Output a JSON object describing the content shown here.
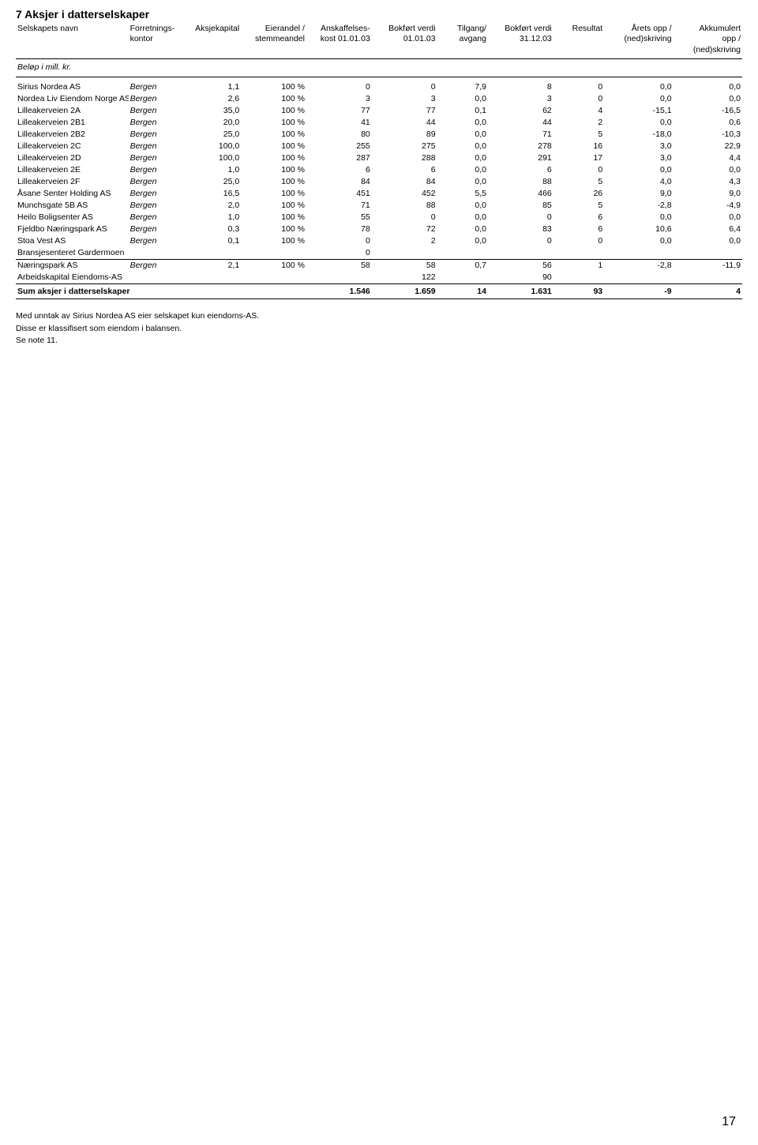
{
  "title": "7  Aksjer i datterselskaper",
  "pageNumber": "17",
  "headers": {
    "name": "Selskapets navn",
    "kontor1": "Forretnings-",
    "kontor2": "kontor",
    "kap": "Aksjekapital",
    "eier1": "Eierandel /",
    "eier2": "stemmeandel",
    "kost1": "Anskaffelses-",
    "kost2": "kost 01.01.03",
    "bv1a": "Bokført verdi",
    "bv1b": "01.01.03",
    "tilg1": "Tilgang/",
    "tilg2": "avgang",
    "bv2a": "Bokført verdi",
    "bv2b": "31.12.03",
    "res": "Resultat",
    "opp1": "Årets opp /",
    "opp2": "(ned)skriving",
    "akk1": "Akkumulert",
    "akk2": "opp /",
    "akk3": "(ned)skriving"
  },
  "subhead": "Beløp i mill. kr.",
  "rows": [
    {
      "name": "Sirius Nordea AS",
      "kontor": "Bergen",
      "kap": "1,1",
      "eier": "100 %",
      "kost": "0",
      "bv1": "0",
      "tilg": "7,9",
      "bv2": "8",
      "res": "0",
      "opp": "0,0",
      "akk": "0,0"
    },
    {
      "name": "Nordea Liv Eiendom Norge AS",
      "kontor": "Bergen",
      "kap": "2,6",
      "eier": "100 %",
      "kost": "3",
      "bv1": "3",
      "tilg": "0,0",
      "bv2": "3",
      "res": "0",
      "opp": "0,0",
      "akk": "0,0"
    },
    {
      "name": "Lilleakerveien 2A",
      "kontor": "Bergen",
      "kap": "35,0",
      "eier": "100 %",
      "kost": "77",
      "bv1": "77",
      "tilg": "0,1",
      "bv2": "62",
      "res": "4",
      "opp": "-15,1",
      "akk": "-16,5"
    },
    {
      "name": "Lilleakerveien 2B1",
      "kontor": "Bergen",
      "kap": "20,0",
      "eier": "100 %",
      "kost": "41",
      "bv1": "44",
      "tilg": "0,0",
      "bv2": "44",
      "res": "2",
      "opp": "0,0",
      "akk": "0,6"
    },
    {
      "name": "Lilleakerveien 2B2",
      "kontor": "Bergen",
      "kap": "25,0",
      "eier": "100 %",
      "kost": "80",
      "bv1": "89",
      "tilg": "0,0",
      "bv2": "71",
      "res": "5",
      "opp": "-18,0",
      "akk": "-10,3"
    },
    {
      "name": "Lilleakerveien 2C",
      "kontor": "Bergen",
      "kap": "100,0",
      "eier": "100 %",
      "kost": "255",
      "bv1": "275",
      "tilg": "0,0",
      "bv2": "278",
      "res": "16",
      "opp": "3,0",
      "akk": "22,9"
    },
    {
      "name": "Lilleakerveien 2D",
      "kontor": "Bergen",
      "kap": "100,0",
      "eier": "100 %",
      "kost": "287",
      "bv1": "288",
      "tilg": "0,0",
      "bv2": "291",
      "res": "17",
      "opp": "3,0",
      "akk": "4,4"
    },
    {
      "name": "Lilleakerveien 2E",
      "kontor": "Bergen",
      "kap": "1,0",
      "eier": "100 %",
      "kost": "6",
      "bv1": "6",
      "tilg": "0,0",
      "bv2": "6",
      "res": "0",
      "opp": "0,0",
      "akk": "0,0"
    },
    {
      "name": "Lilleakerveien 2F",
      "kontor": "Bergen",
      "kap": "25,0",
      "eier": "100 %",
      "kost": "84",
      "bv1": "84",
      "tilg": "0,0",
      "bv2": "88",
      "res": "5",
      "opp": "4,0",
      "akk": "4,3"
    },
    {
      "name": "Åsane Senter Holding AS",
      "kontor": "Bergen",
      "kap": "16,5",
      "eier": "100 %",
      "kost": "451",
      "bv1": "452",
      "tilg": "5,5",
      "bv2": "466",
      "res": "26",
      "opp": "9,0",
      "akk": "9,0"
    },
    {
      "name": "Munchsgate 5B AS",
      "kontor": "Bergen",
      "kap": "2,0",
      "eier": "100 %",
      "kost": "71",
      "bv1": "88",
      "tilg": "0,0",
      "bv2": "85",
      "res": "5",
      "opp": "-2,8",
      "akk": "-4,9"
    },
    {
      "name": "Heilo Boligsenter AS",
      "kontor": "Bergen",
      "kap": "1,0",
      "eier": "100 %",
      "kost": "55",
      "bv1": "0",
      "tilg": "0,0",
      "bv2": "0",
      "res": "6",
      "opp": "0,0",
      "akk": "0,0"
    },
    {
      "name": "Fjeldbo Næringspark AS",
      "kontor": "Bergen",
      "kap": "0,3",
      "eier": "100 %",
      "kost": "78",
      "bv1": "72",
      "tilg": "0,0",
      "bv2": "83",
      "res": "6",
      "opp": "10,6",
      "akk": "6,4"
    },
    {
      "name": "Stoa Vest AS",
      "kontor": "Bergen",
      "kap": "0,1",
      "eier": "100 %",
      "kost": "0",
      "bv1": "2",
      "tilg": "0,0",
      "bv2": "0",
      "res": "0",
      "opp": "0,0",
      "akk": "0,0"
    },
    {
      "name": "Bransjesenteret Gardermoen",
      "kontor": "",
      "kap": "",
      "eier": "",
      "kost": "0",
      "bv1": "",
      "tilg": "",
      "bv2": "",
      "res": "",
      "opp": "",
      "akk": ""
    }
  ],
  "rows2": [
    {
      "name": "Næringspark AS",
      "kontor": "Bergen",
      "kap": "2,1",
      "eier": "100 %",
      "kost": "58",
      "bv1": "58",
      "tilg": "0,7",
      "bv2": "56",
      "res": "1",
      "opp": "-2,8",
      "akk": "-11,9"
    },
    {
      "name": "Arbeidskapital Eiendoms-AS",
      "kontor": "",
      "kap": "",
      "eier": "",
      "kost": "",
      "bv1": "122",
      "tilg": "",
      "bv2": "90",
      "res": "",
      "opp": "",
      "akk": ""
    }
  ],
  "sum": {
    "label": "Sum aksjer i datterselskaper",
    "kost": "1.546",
    "bv1": "1.659",
    "tilg": "14",
    "bv2": "1.631",
    "res": "93",
    "opp": "-9",
    "akk": "4"
  },
  "notes": [
    "Med unntak av Sirius Nordea AS eier selskapet kun eiendoms-AS.",
    "Disse er klassifisert som eiendom i balansen.",
    "Se note 11."
  ]
}
